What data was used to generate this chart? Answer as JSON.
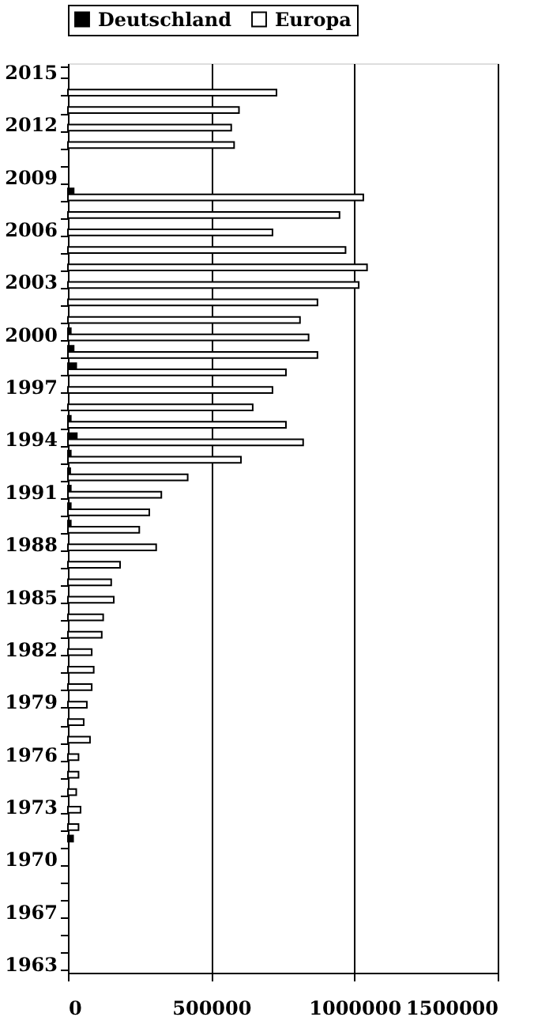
{
  "chart_data": {
    "type": "bar",
    "orientation": "horizontal",
    "categories": [
      "2015",
      null,
      null,
      "2012",
      null,
      null,
      "2009",
      null,
      null,
      "2006",
      null,
      null,
      "2003",
      null,
      null,
      "2000",
      null,
      null,
      "1997",
      null,
      null,
      "1994",
      null,
      null,
      "1991",
      null,
      null,
      "1988",
      null,
      null,
      "1985",
      null,
      null,
      "1982",
      null,
      null,
      "1979",
      null,
      null,
      "1976",
      null,
      null,
      "1973",
      null,
      null,
      "1970",
      null,
      null,
      "1967",
      null,
      null,
      "1963"
    ],
    "series": [
      {
        "name": "Deutschland",
        "color": "#000000",
        "values": [
          null,
          null,
          null,
          null,
          null,
          null,
          null,
          20000,
          null,
          null,
          null,
          null,
          null,
          null,
          null,
          10000,
          20000,
          29000,
          null,
          null,
          10000,
          31000,
          10000,
          8000,
          10000,
          10000,
          10000,
          null,
          null,
          null,
          null,
          null,
          null,
          null,
          null,
          null,
          null,
          null,
          null,
          null,
          null,
          null,
          null,
          null,
          18000,
          null,
          null,
          null,
          null,
          null,
          null,
          null
        ]
      },
      {
        "name": "Europa",
        "color": "#ffffff",
        "values": [
          null,
          728000,
          597000,
          570000,
          580000,
          null,
          null,
          1031000,
          948000,
          714000,
          969000,
          1044000,
          1015000,
          871000,
          810000,
          840000,
          871000,
          761000,
          714000,
          645000,
          761000,
          821000,
          604000,
          418000,
          326000,
          284000,
          249000,
          308000,
          182000,
          151000,
          160000,
          123000,
          118000,
          83000,
          90000,
          83000,
          66000,
          55000,
          77000,
          37000,
          37000,
          29000,
          44000,
          37000,
          null,
          null,
          null,
          null,
          null,
          null,
          null,
          null
        ]
      }
    ],
    "xlim": [
      0,
      1500000
    ],
    "xticks": [
      0,
      500000,
      1000000,
      1500000
    ],
    "grid": "x",
    "legend": "top"
  }
}
